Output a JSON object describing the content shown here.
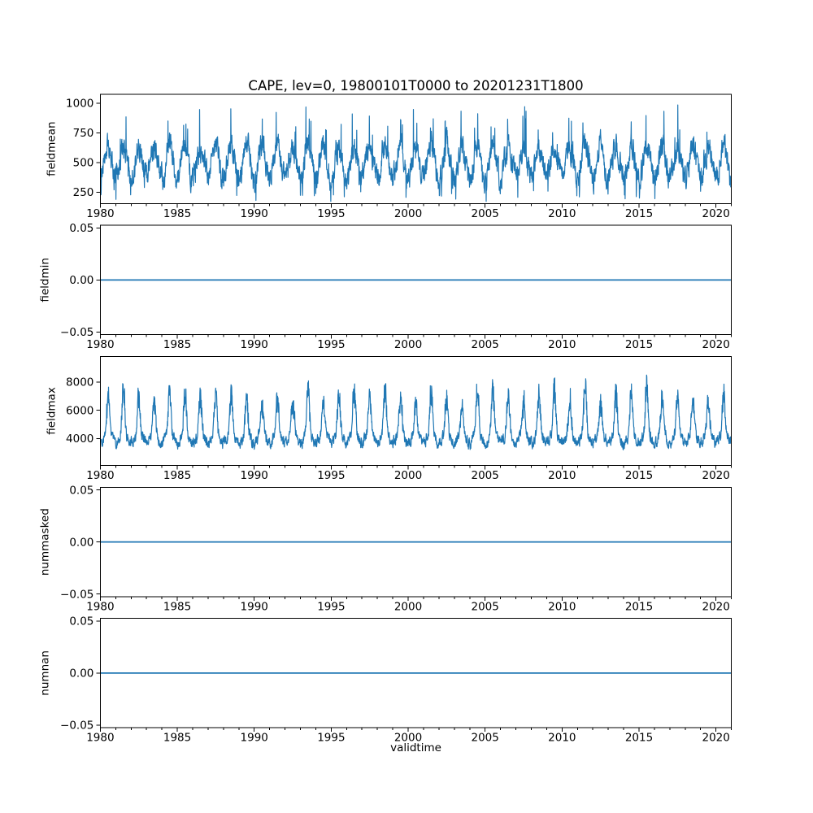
{
  "figure": {
    "title": "CAPE, lev=0, 19800101T0000 to 20201231T1800",
    "xlabel": "validtime",
    "bg_color": "#ffffff",
    "line_color": "#1f77b4",
    "axis_color": "#000000",
    "text_color": "#000000"
  },
  "chart_data": {
    "type": "line",
    "title": "CAPE, lev=0, 19800101T0000 to 20201231T1800",
    "xlabel": "validtime",
    "grid": false,
    "legend": false,
    "line_color": "#1f77b4",
    "x_axis": {
      "min": 1980,
      "max": 2021,
      "data_start": 1980.0,
      "data_end": 2021.0,
      "major_ticks": [
        1980,
        1985,
        1990,
        1995,
        2000,
        2005,
        2010,
        2015,
        2020
      ],
      "major_tick_labels": [
        "1980",
        "1985",
        "1990",
        "1995",
        "2000",
        "2005",
        "2010",
        "2015",
        "2020"
      ],
      "minor_tick_step_years": 1
    },
    "subplots": [
      {
        "ylabel": "fieldmean",
        "ylim": [
          154,
          1075
        ],
        "yticks": [
          {
            "v": 250,
            "label": "250"
          },
          {
            "v": 500,
            "label": "500"
          },
          {
            "v": 750,
            "label": "750"
          },
          {
            "v": 1000,
            "label": "1000"
          }
        ],
        "series": {
          "kind": "seasonal-noise",
          "seed": 20180101,
          "points_per_year": 73,
          "base": 500,
          "seasonal_amp_min": 100,
          "seasonal_amp_max": 160,
          "noise_amp": 80,
          "noise_persist": 0.55,
          "burst_min": 0,
          "burst_max": 0,
          "burst_exp": 1,
          "spike_prob": 0.05,
          "spike_min": 120,
          "spike_max": 320,
          "dip_prob": 0.06,
          "dip_max": 200,
          "clamp": [
            172,
            985
          ]
        },
        "summary": {
          "description": "6-hourly CAPE field mean 1980-2020, strong annual cycle with high-frequency noise",
          "long_term_mean": 500,
          "typical_annual_max": 760,
          "typical_annual_min": 310,
          "observed_min": 185,
          "observed_max": 960
        }
      },
      {
        "ylabel": "fieldmin",
        "ylim": [
          -0.0525,
          0.0525
        ],
        "yticks": [
          {
            "v": -0.05,
            "label": "−0.05"
          },
          {
            "v": 0,
            "label": "0.00"
          },
          {
            "v": 0.05,
            "label": "0.05"
          }
        ],
        "series": {
          "kind": "constant",
          "value": 0
        },
        "summary": {
          "description": "field minimum is constant 0.00 over the whole period",
          "constant_value": 0
        }
      },
      {
        "ylabel": "fieldmax",
        "ylim": [
          2082,
          9823
        ],
        "yticks": [
          {
            "v": 4000,
            "label": "4000"
          },
          {
            "v": 6000,
            "label": "6000"
          },
          {
            "v": 8000,
            "label": "8000"
          }
        ],
        "series": {
          "kind": "seasonal-noise",
          "seed": 19800101,
          "points_per_year": 73,
          "base": 4100,
          "seasonal_amp_min": 400,
          "seasonal_amp_max": 440,
          "noise_amp": 330,
          "noise_persist": 0.5,
          "burst_min": 2200,
          "burst_max": 4300,
          "burst_exp": 3,
          "spike_prob": 0.03,
          "spike_min": 200,
          "spike_max": 700,
          "dip_prob": 0,
          "dip_max": 0,
          "clamp": [
            2950,
            9400
          ]
        },
        "summary": {
          "description": "6-hourly CAPE field max 1980-2020, dense baseline band with sharp annual summer peaks",
          "baseline_band": [
            3300,
            4800
          ],
          "typical_annual_peak": [
            6500,
            8800
          ],
          "observed_min": 3000,
          "observed_max": 9350
        }
      },
      {
        "ylabel": "nummasked",
        "ylim": [
          -0.0525,
          0.0525
        ],
        "yticks": [
          {
            "v": -0.05,
            "label": "−0.05"
          },
          {
            "v": 0,
            "label": "0.00"
          },
          {
            "v": 0.05,
            "label": "0.05"
          }
        ],
        "series": {
          "kind": "constant",
          "value": 0
        },
        "summary": {
          "description": "number of masked points is constant 0.00 over the whole period",
          "constant_value": 0
        }
      },
      {
        "ylabel": "numnan",
        "ylim": [
          -0.0525,
          0.0525
        ],
        "yticks": [
          {
            "v": -0.05,
            "label": "−0.05"
          },
          {
            "v": 0,
            "label": "0.00"
          },
          {
            "v": 0.05,
            "label": "0.05"
          }
        ],
        "series": {
          "kind": "constant",
          "value": 0
        },
        "summary": {
          "description": "number of NaN points is constant 0.00 over the whole period",
          "constant_value": 0
        }
      }
    ]
  }
}
